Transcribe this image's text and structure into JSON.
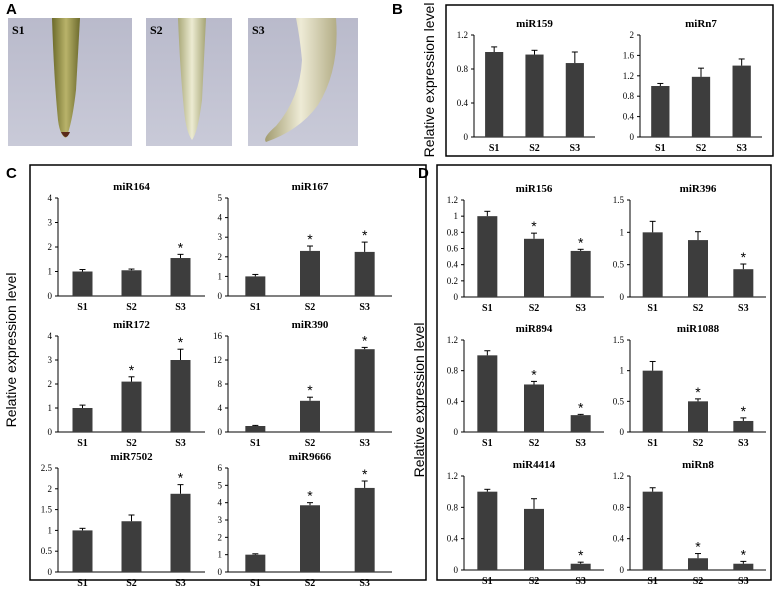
{
  "figure": {
    "panels": [
      {
        "label": "A",
        "photo_labels": [
          "S1",
          "S2",
          "S3"
        ]
      },
      {
        "label": "B",
        "ylabel": "Relative expression level"
      },
      {
        "label": "C",
        "ylabel": "Relative expression level"
      },
      {
        "label": "D",
        "ylabel": "Relative expression level"
      }
    ]
  },
  "chart_data": [
    {
      "type": "bar",
      "title": "miR159",
      "categories": [
        "S1",
        "S2",
        "S3"
      ],
      "values": [
        1.0,
        0.97,
        0.87
      ],
      "errors": [
        0.06,
        0.05,
        0.13
      ],
      "annotations": [
        null,
        null,
        null
      ],
      "ylim": [
        0,
        1.2
      ],
      "yticks": [
        0,
        0.4,
        0.8,
        1.2
      ],
      "color": "#3d3d3d"
    },
    {
      "type": "bar",
      "title": "miRn7",
      "categories": [
        "S1",
        "S2",
        "S3"
      ],
      "values": [
        1.0,
        1.18,
        1.4
      ],
      "errors": [
        0.05,
        0.17,
        0.13
      ],
      "annotations": [
        null,
        null,
        null
      ],
      "ylim": [
        0,
        2
      ],
      "yticks": [
        0,
        0.4,
        0.8,
        1.2,
        1.6,
        2
      ],
      "color": "#3d3d3d"
    },
    {
      "type": "bar",
      "title": "miR164",
      "categories": [
        "S1",
        "S2",
        "S3"
      ],
      "values": [
        1.0,
        1.05,
        1.55
      ],
      "errors": [
        0.08,
        0.05,
        0.15
      ],
      "annotations": [
        null,
        null,
        "*"
      ],
      "ylim": [
        0,
        4
      ],
      "yticks": [
        0,
        1,
        2,
        3,
        4
      ],
      "color": "#3d3d3d"
    },
    {
      "type": "bar",
      "title": "miR167",
      "categories": [
        "S1",
        "S2",
        "S3"
      ],
      "values": [
        1.0,
        2.3,
        2.25
      ],
      "errors": [
        0.1,
        0.25,
        0.5
      ],
      "annotations": [
        null,
        "*",
        "*"
      ],
      "ylim": [
        0,
        5
      ],
      "yticks": [
        0,
        1,
        2,
        3,
        4,
        5
      ],
      "color": "#3d3d3d"
    },
    {
      "type": "bar",
      "title": "miR172",
      "categories": [
        "S1",
        "S2",
        "S3"
      ],
      "values": [
        1.0,
        2.1,
        3.0
      ],
      "errors": [
        0.12,
        0.2,
        0.45
      ],
      "annotations": [
        null,
        "*",
        "*"
      ],
      "ylim": [
        0,
        4
      ],
      "yticks": [
        0,
        1,
        2,
        3,
        4
      ],
      "color": "#3d3d3d"
    },
    {
      "type": "bar",
      "title": "miR390",
      "categories": [
        "S1",
        "S2",
        "S3"
      ],
      "values": [
        1.0,
        5.2,
        13.8
      ],
      "errors": [
        0.1,
        0.6,
        0.3
      ],
      "annotations": [
        null,
        "*",
        "*"
      ],
      "ylim": [
        0,
        16
      ],
      "yticks": [
        0,
        4,
        8,
        12,
        16
      ],
      "color": "#3d3d3d"
    },
    {
      "type": "bar",
      "title": "miR7502",
      "categories": [
        "S1",
        "S2",
        "S3"
      ],
      "values": [
        1.0,
        1.22,
        1.88
      ],
      "errors": [
        0.05,
        0.15,
        0.22
      ],
      "annotations": [
        null,
        null,
        "*"
      ],
      "ylim": [
        0,
        2.5
      ],
      "yticks": [
        0,
        0.5,
        1,
        1.5,
        2,
        2.5
      ],
      "color": "#3d3d3d"
    },
    {
      "type": "bar",
      "title": "miR9666",
      "categories": [
        "S1",
        "S2",
        "S3"
      ],
      "values": [
        1.0,
        3.85,
        4.85
      ],
      "errors": [
        0.05,
        0.15,
        0.4
      ],
      "annotations": [
        null,
        "*",
        "*"
      ],
      "ylim": [
        0,
        6
      ],
      "yticks": [
        0,
        1,
        2,
        3,
        4,
        5,
        6
      ],
      "color": "#3d3d3d"
    },
    {
      "type": "bar",
      "title": "miR156",
      "categories": [
        "S1",
        "S2",
        "S3"
      ],
      "values": [
        1.0,
        0.72,
        0.57
      ],
      "errors": [
        0.06,
        0.07,
        0.02
      ],
      "annotations": [
        null,
        "*",
        "*"
      ],
      "ylim": [
        0,
        1.2
      ],
      "yticks": [
        0,
        0.2,
        0.4,
        0.6,
        0.8,
        1,
        1.2
      ],
      "color": "#3d3d3d"
    },
    {
      "type": "bar",
      "title": "miR396",
      "categories": [
        "S1",
        "S2",
        "S3"
      ],
      "values": [
        1.0,
        0.88,
        0.43
      ],
      "errors": [
        0.17,
        0.13,
        0.08
      ],
      "annotations": [
        null,
        null,
        "*"
      ],
      "ylim": [
        0,
        1.5
      ],
      "yticks": [
        0,
        0.5,
        1,
        1.5
      ],
      "color": "#3d3d3d"
    },
    {
      "type": "bar",
      "title": "miR894",
      "categories": [
        "S1",
        "S2",
        "S3"
      ],
      "values": [
        1.0,
        0.62,
        0.22
      ],
      "errors": [
        0.06,
        0.04,
        0.01
      ],
      "annotations": [
        null,
        "*",
        "*"
      ],
      "ylim": [
        0,
        1.2
      ],
      "yticks": [
        0,
        0.4,
        0.8,
        1.2
      ],
      "color": "#3d3d3d"
    },
    {
      "type": "bar",
      "title": "miR1088",
      "categories": [
        "S1",
        "S2",
        "S3"
      ],
      "values": [
        1.0,
        0.5,
        0.18
      ],
      "errors": [
        0.15,
        0.04,
        0.05
      ],
      "annotations": [
        null,
        "*",
        "*"
      ],
      "ylim": [
        0,
        1.5
      ],
      "yticks": [
        0,
        0.5,
        1,
        1.5
      ],
      "color": "#3d3d3d"
    },
    {
      "type": "bar",
      "title": "miR4414",
      "categories": [
        "S1",
        "S2",
        "S3"
      ],
      "values": [
        1.0,
        0.78,
        0.08
      ],
      "errors": [
        0.03,
        0.13,
        0.02
      ],
      "annotations": [
        null,
        null,
        "*"
      ],
      "ylim": [
        0,
        1.2
      ],
      "yticks": [
        0,
        0.4,
        0.8,
        1.2
      ],
      "color": "#3d3d3d"
    },
    {
      "type": "bar",
      "title": "miRn8",
      "categories": [
        "S1",
        "S2",
        "S3"
      ],
      "values": [
        1.0,
        0.15,
        0.08
      ],
      "errors": [
        0.05,
        0.06,
        0.03
      ],
      "annotations": [
        null,
        "*",
        "*"
      ],
      "ylim": [
        0,
        1.2
      ],
      "yticks": [
        0,
        0.4,
        0.8,
        1.2
      ],
      "color": "#3d3d3d"
    }
  ]
}
